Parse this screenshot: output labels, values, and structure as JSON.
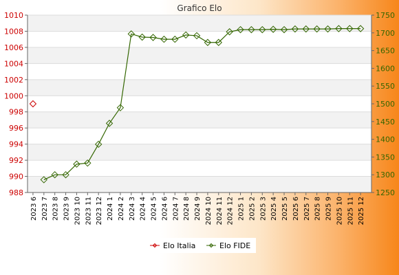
{
  "chart_data": {
    "type": "line",
    "title": "Grafico Elo",
    "categories": [
      "2023 6",
      "2023 7",
      "2023 8",
      "2023 9",
      "2023 10",
      "2023 11",
      "2023 12",
      "2024 1",
      "2024 2",
      "2024 3",
      "2024 4",
      "2024 5",
      "2024 6",
      "2024 7",
      "2024 8",
      "2024 9",
      "2024 10",
      "2024 11",
      "2024 12",
      "2025 1",
      "2025 2",
      "2025 3",
      "2025 4",
      "2025 5",
      "2025 6",
      "2025 7",
      "2025 8",
      "2025 9",
      "2025 10",
      "2025 11",
      "2025 12"
    ],
    "y_left": {
      "ylim": [
        988,
        1010
      ],
      "ticks": [
        "988",
        "990",
        "992",
        "994",
        "996",
        "998",
        "1000",
        "1002",
        "1004",
        "1006",
        "1008",
        "1010"
      ]
    },
    "y_right": {
      "ylim": [
        1250,
        1750
      ],
      "ticks": [
        "1250",
        "1300",
        "1350",
        "1400",
        "1450",
        "1500",
        "1550",
        "1600",
        "1650",
        "1700",
        "1750"
      ]
    },
    "grid": true,
    "legend_position": "bottom",
    "series": [
      {
        "name": "Elo Italia",
        "axis": "left",
        "color": "#cc0000",
        "values": [
          999,
          null,
          null,
          null,
          null,
          null,
          null,
          null,
          null,
          null,
          null,
          null,
          null,
          null,
          null,
          null,
          null,
          null,
          null,
          null,
          null,
          null,
          null,
          null,
          null,
          null,
          null,
          null,
          null,
          null,
          null
        ]
      },
      {
        "name": "Elo FIDE",
        "axis": "right",
        "color": "#336600",
        "values": [
          null,
          1286,
          1300,
          1300,
          1330,
          1333,
          1386,
          1445,
          1489,
          1697,
          1688,
          1687,
          1682,
          1682,
          1694,
          1692,
          1673,
          1673,
          1703,
          1709,
          1709,
          1709,
          1710,
          1709,
          1711,
          1711,
          1711,
          1711,
          1712,
          1712,
          1712
        ]
      }
    ]
  }
}
